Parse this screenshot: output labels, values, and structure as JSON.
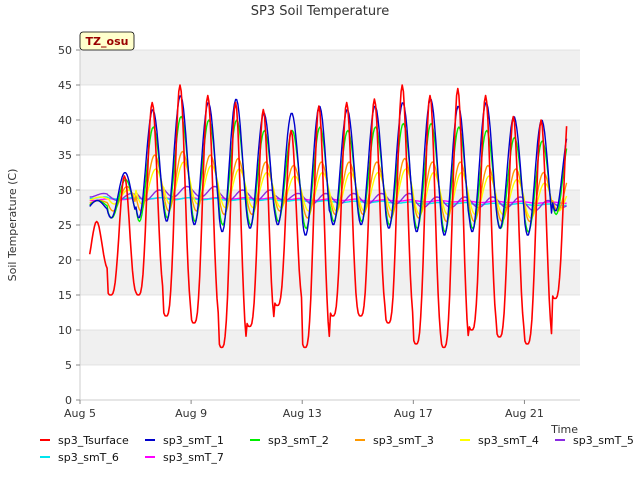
{
  "chart_data": {
    "type": "line",
    "title": "SP3 Soil Temperature",
    "xlabel": "Time",
    "ylabel": "Soil Temperature (C)",
    "ylim": [
      0,
      50
    ],
    "yticks": [
      0,
      5,
      10,
      15,
      20,
      25,
      30,
      35,
      40,
      45,
      50
    ],
    "xlim": [
      "2023-08-05",
      "2023-08-23"
    ],
    "xticks": [
      {
        "date": "2023-08-05",
        "label": "Aug 5"
      },
      {
        "date": "2023-08-09",
        "label": "Aug 9"
      },
      {
        "date": "2023-08-13",
        "label": "Aug 13"
      },
      {
        "date": "2023-08-17",
        "label": "Aug 17"
      },
      {
        "date": "2023-08-21",
        "label": "Aug 21"
      }
    ],
    "grid": "horizontal bands",
    "legend_position": "bottom",
    "annotation": "TZ_osu",
    "dates": [
      "2023-08-05",
      "2023-08-06",
      "2023-08-07",
      "2023-08-08",
      "2023-08-09",
      "2023-08-10",
      "2023-08-11",
      "2023-08-12",
      "2023-08-13",
      "2023-08-14",
      "2023-08-15",
      "2023-08-16",
      "2023-08-17",
      "2023-08-18",
      "2023-08-19",
      "2023-08-20",
      "2023-08-21",
      "2023-08-22"
    ],
    "series": [
      {
        "name": "sp3_Tsurface",
        "color": "#ff0000",
        "daily_min": [
          18.5,
          15.0,
          15.0,
          12.0,
          11.0,
          7.5,
          10.5,
          13.5,
          7.5,
          12.0,
          12.0,
          11.0,
          8.0,
          7.5,
          10.0,
          9.0,
          8.0,
          14.5
        ],
        "daily_max": [
          25.5,
          32.0,
          42.5,
          45.0,
          43.5,
          42.5,
          41.5,
          38.5,
          42.0,
          42.5,
          43.0,
          45.0,
          43.5,
          44.5,
          43.5,
          40.5,
          40.0,
          42.0
        ]
      },
      {
        "name": "sp3_smT_1",
        "color": "#0000cc",
        "daily_min": [
          27.0,
          26.0,
          26.0,
          25.5,
          25.0,
          24.0,
          24.5,
          25.0,
          23.5,
          25.0,
          25.0,
          24.5,
          24.0,
          23.5,
          24.0,
          24.5,
          23.5,
          27.0
        ],
        "daily_max": [
          28.5,
          32.5,
          41.5,
          43.5,
          42.5,
          43.0,
          41.0,
          41.0,
          42.0,
          41.5,
          42.0,
          42.5,
          43.0,
          42.0,
          42.5,
          40.5,
          40.0,
          38.5
        ]
      },
      {
        "name": "sp3_smT_2",
        "color": "#00ee00",
        "daily_min": [
          27.5,
          26.0,
          25.5,
          26.0,
          25.5,
          25.0,
          25.0,
          25.5,
          24.5,
          25.5,
          25.5,
          25.0,
          24.5,
          24.0,
          24.5,
          24.5,
          24.0,
          26.5
        ],
        "daily_max": [
          28.5,
          31.5,
          39.0,
          40.5,
          40.0,
          40.0,
          38.5,
          38.5,
          39.0,
          38.5,
          39.0,
          39.5,
          39.5,
          39.0,
          38.5,
          37.5,
          37.0,
          37.5
        ]
      },
      {
        "name": "sp3_smT_3",
        "color": "#ff9900",
        "daily_min": [
          28.0,
          27.0,
          27.0,
          27.0,
          27.0,
          26.5,
          26.5,
          27.0,
          26.0,
          26.5,
          26.5,
          26.0,
          26.0,
          25.5,
          25.5,
          25.5,
          25.5,
          27.0
        ],
        "daily_max": [
          28.5,
          30.5,
          35.0,
          35.5,
          35.0,
          34.5,
          34.0,
          33.5,
          34.0,
          34.0,
          34.0,
          34.5,
          34.0,
          34.0,
          33.5,
          33.0,
          32.5,
          32.5
        ]
      },
      {
        "name": "sp3_smT_4",
        "color": "#ffff00",
        "daily_min": [
          28.5,
          28.0,
          28.0,
          28.0,
          28.0,
          27.5,
          27.5,
          27.5,
          27.0,
          27.0,
          27.0,
          27.0,
          26.5,
          26.5,
          26.5,
          26.5,
          26.0,
          27.0
        ],
        "daily_max": [
          29.0,
          30.0,
          33.0,
          34.0,
          33.5,
          33.0,
          32.5,
          32.0,
          32.5,
          32.5,
          32.5,
          33.0,
          32.5,
          32.5,
          32.0,
          31.5,
          31.0,
          30.5
        ]
      },
      {
        "name": "sp3_smT_5",
        "color": "#8a2be2",
        "daily_min": [
          29.0,
          28.5,
          28.5,
          29.0,
          29.0,
          28.5,
          28.5,
          28.5,
          28.0,
          28.0,
          28.0,
          28.0,
          27.5,
          27.5,
          27.5,
          27.5,
          27.0,
          27.5
        ],
        "daily_max": [
          29.5,
          29.5,
          30.0,
          30.5,
          30.5,
          30.0,
          30.0,
          29.5,
          29.5,
          29.5,
          29.5,
          29.5,
          29.0,
          29.0,
          29.0,
          29.0,
          28.5,
          28.5
        ]
      },
      {
        "name": "sp3_smT_6",
        "color": "#00e5ee",
        "daily_min": [
          28.8,
          28.7,
          28.7,
          28.6,
          28.6,
          28.5,
          28.5,
          28.4,
          28.3,
          28.2,
          28.2,
          28.1,
          28.0,
          28.0,
          27.9,
          27.9,
          27.8,
          27.8
        ],
        "daily_max": [
          29.0,
          28.9,
          28.9,
          28.9,
          28.8,
          28.7,
          28.7,
          28.6,
          28.5,
          28.4,
          28.4,
          28.3,
          28.2,
          28.2,
          28.1,
          28.1,
          28.0,
          28.0
        ]
      },
      {
        "name": "sp3_smT_7",
        "color": "#ff00ff",
        "daily_min": [
          28.5,
          28.6,
          28.7,
          28.7,
          28.7,
          28.7,
          28.7,
          28.6,
          28.5,
          28.5,
          28.4,
          28.4,
          28.3,
          28.3,
          28.2,
          28.2,
          28.1,
          28.1
        ],
        "daily_max": [
          28.7,
          28.8,
          28.9,
          28.9,
          28.9,
          28.9,
          28.9,
          28.8,
          28.7,
          28.7,
          28.6,
          28.6,
          28.5,
          28.5,
          28.4,
          28.4,
          28.3,
          28.3
        ]
      }
    ]
  }
}
